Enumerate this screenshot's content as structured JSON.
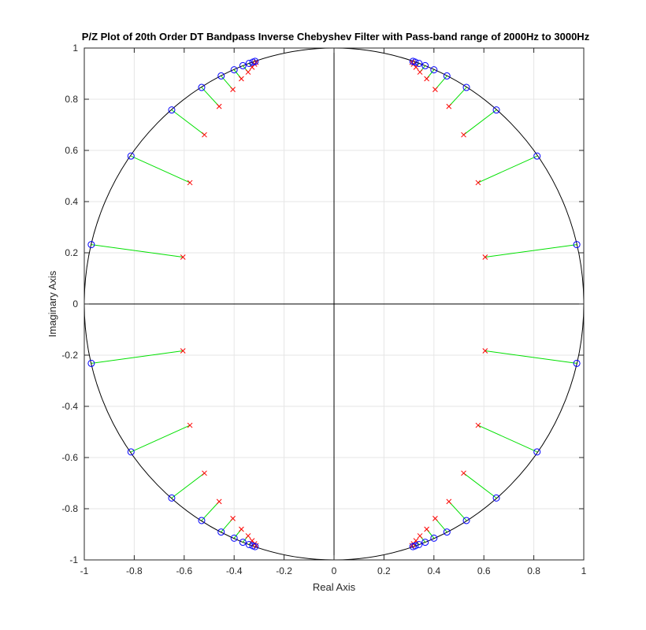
{
  "chart_data": {
    "type": "scatter",
    "title": "P/Z Plot of 20th Order DT Bandpass Inverse Chebyshev Filter with Pass-band range of 2000Hz to 3000Hz",
    "xlabel": "Real Axis",
    "ylabel": "Imaginary Axis",
    "xlim": [
      -1,
      1
    ],
    "ylim": [
      -1,
      1
    ],
    "xticks": [
      -1,
      -0.8,
      -0.6,
      -0.4,
      -0.2,
      0,
      0.2,
      0.4,
      0.6,
      0.8,
      1
    ],
    "yticks": [
      -1,
      -0.8,
      -0.6,
      -0.4,
      -0.2,
      0,
      0.2,
      0.4,
      0.6,
      0.8,
      1
    ],
    "xtick_labels": [
      "-1",
      "-0.8",
      "-0.6",
      "-0.4",
      "-0.2",
      "0",
      "0.2",
      "0.4",
      "0.6",
      "0.8",
      "1"
    ],
    "ytick_labels": [
      "-1",
      "-0.8",
      "-0.6",
      "-0.4",
      "-0.2",
      "0",
      "0.2",
      "0.4",
      "0.6",
      "0.8",
      "1"
    ],
    "grid": true,
    "unit_circle": true,
    "colors": {
      "zeros": "#0000ff",
      "poles": "#ff0000",
      "links": "#00e000",
      "grid": "#e6e6e6",
      "axes": "#000000"
    },
    "pairs": [
      {
        "zero": [
          0.972,
          0.232
        ],
        "pole": [
          0.605,
          0.183
        ]
      },
      {
        "zero": [
          0.813,
          0.578
        ],
        "pole": [
          0.577,
          0.474
        ]
      },
      {
        "zero": [
          0.65,
          0.758
        ],
        "pole": [
          0.519,
          0.661
        ]
      },
      {
        "zero": [
          0.53,
          0.846
        ],
        "pole": [
          0.46,
          0.772
        ]
      },
      {
        "zero": [
          0.452,
          0.891
        ],
        "pole": [
          0.405,
          0.838
        ]
      },
      {
        "zero": [
          0.4,
          0.915
        ],
        "pole": [
          0.371,
          0.88
        ]
      },
      {
        "zero": [
          0.365,
          0.931
        ],
        "pole": [
          0.344,
          0.906
        ]
      },
      {
        "zero": [
          0.34,
          0.94
        ],
        "pole": [
          0.328,
          0.925
        ]
      },
      {
        "zero": [
          0.325,
          0.945
        ],
        "pole": [
          0.318,
          0.937
        ]
      },
      {
        "zero": [
          0.316,
          0.948
        ],
        "pole": [
          0.312,
          0.944
        ]
      }
    ]
  }
}
